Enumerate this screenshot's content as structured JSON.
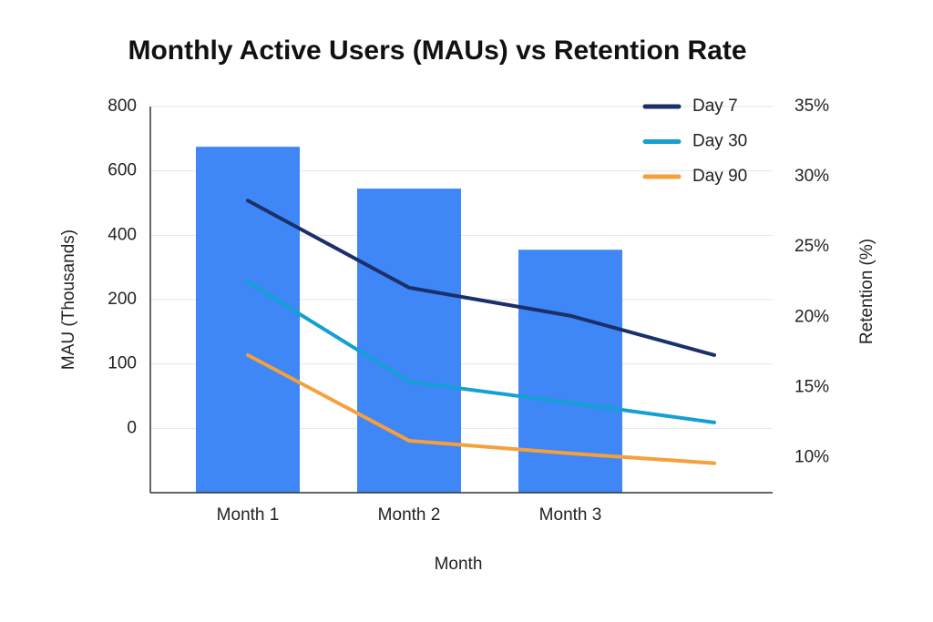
{
  "chart_data": {
    "type": "bar_line",
    "title": "Monthly Active Users (MAUs) vs Retention Rate",
    "x_label": "Month",
    "y_label": "MAU (Thousands)",
    "y2_label": "Retention (%)",
    "categories": [
      "Month 1",
      "Month 2",
      "Month 3",
      null
    ],
    "ylim": [
      -100,
      800
    ],
    "yticks": [
      0,
      100,
      200,
      400,
      600,
      800
    ],
    "y2lim": [
      7.5,
      35
    ],
    "y2ticks": [
      {
        "value": 10,
        "label": "10%"
      },
      {
        "value": 15,
        "label": "15%"
      },
      {
        "value": 20,
        "label": "20%"
      },
      {
        "value": 25,
        "label": "25%"
      },
      {
        "value": 30,
        "label": "30%"
      },
      {
        "value": 35,
        "label": "35%"
      }
    ],
    "grid": true,
    "legend": "upper right",
    "series": [
      {
        "name": "MAU",
        "kind": "bar",
        "axis": "y",
        "color": "#3f86f7",
        "values": [
          675,
          545,
          355,
          null
        ]
      },
      {
        "name": "Day 7",
        "kind": "line",
        "axis": "y2",
        "color": "#1b2f6b",
        "values": [
          28.3,
          22.1,
          20.1,
          17.3
        ]
      },
      {
        "name": "Day 30",
        "kind": "line",
        "axis": "y2",
        "color": "#14a0d2",
        "values": [
          22.5,
          15.4,
          13.9,
          12.5
        ]
      },
      {
        "name": "Day 90",
        "kind": "line",
        "axis": "y2",
        "color": "#f5a03a",
        "values": [
          17.3,
          11.2,
          10.3,
          9.6
        ]
      }
    ]
  }
}
